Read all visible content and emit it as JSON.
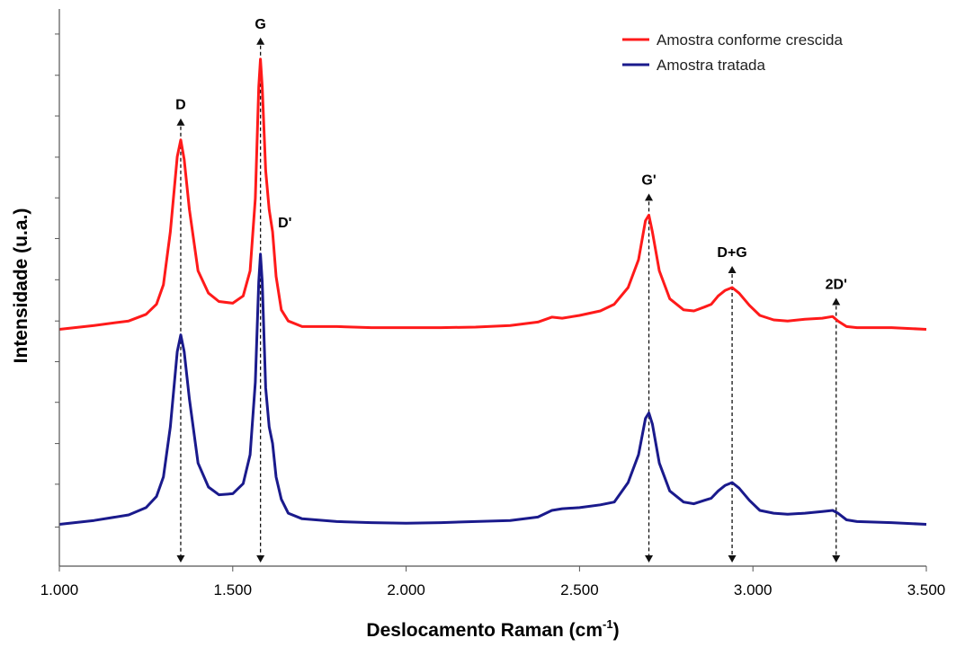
{
  "chart_data": {
    "type": "line",
    "xlabel": "Deslocamento Raman (cm",
    "xlabel_sup": "-1",
    "xlabel_end": ")",
    "ylabel": "Intensidade (u.a.)",
    "xlim": [
      1000,
      3500
    ],
    "ylim": [
      0,
      1
    ],
    "x_ticks": [
      1000,
      1500,
      2000,
      2500,
      3000,
      3500
    ],
    "x_tick_labels": [
      "1.000",
      "1.500",
      "2.000",
      "2.500",
      "3.000",
      "3.500"
    ],
    "y_minor_ticks": [
      0.07,
      0.147,
      0.22,
      0.294,
      0.367,
      0.44,
      0.514,
      0.588,
      0.661,
      0.734,
      0.808,
      0.881,
      0.955
    ],
    "grid": false,
    "legend_position": "top-right",
    "series": [
      {
        "name": "Amostra conforme crescida",
        "color": "#ff1a1a",
        "x": [
          1000,
          1100,
          1200,
          1250,
          1280,
          1300,
          1320,
          1340,
          1350,
          1360,
          1375,
          1400,
          1430,
          1460,
          1500,
          1530,
          1550,
          1565,
          1575,
          1580,
          1585,
          1595,
          1605,
          1615,
          1625,
          1640,
          1660,
          1700,
          1800,
          1900,
          2000,
          2100,
          2200,
          2300,
          2380,
          2420,
          2450,
          2500,
          2560,
          2600,
          2640,
          2670,
          2690,
          2700,
          2710,
          2730,
          2760,
          2800,
          2830,
          2860,
          2880,
          2900,
          2920,
          2940,
          2960,
          2990,
          3020,
          3060,
          3100,
          3150,
          3200,
          3230,
          3245,
          3270,
          3300,
          3400,
          3500
        ],
        "y": [
          0.425,
          0.432,
          0.44,
          0.452,
          0.47,
          0.505,
          0.6,
          0.735,
          0.765,
          0.73,
          0.64,
          0.53,
          0.49,
          0.475,
          0.472,
          0.485,
          0.53,
          0.66,
          0.86,
          0.91,
          0.86,
          0.71,
          0.64,
          0.6,
          0.52,
          0.46,
          0.44,
          0.43,
          0.43,
          0.428,
          0.428,
          0.428,
          0.429,
          0.432,
          0.438,
          0.447,
          0.445,
          0.45,
          0.458,
          0.47,
          0.5,
          0.55,
          0.62,
          0.63,
          0.6,
          0.53,
          0.48,
          0.46,
          0.458,
          0.465,
          0.47,
          0.485,
          0.495,
          0.5,
          0.49,
          0.468,
          0.45,
          0.442,
          0.44,
          0.443,
          0.445,
          0.448,
          0.44,
          0.43,
          0.428,
          0.428,
          0.425
        ]
      },
      {
        "name": "Amostra tratada",
        "color": "#1a1a8c",
        "x": [
          1000,
          1100,
          1200,
          1250,
          1280,
          1300,
          1320,
          1340,
          1350,
          1360,
          1375,
          1400,
          1430,
          1460,
          1500,
          1530,
          1550,
          1565,
          1575,
          1580,
          1585,
          1595,
          1605,
          1615,
          1625,
          1640,
          1660,
          1700,
          1800,
          1900,
          2000,
          2100,
          2200,
          2300,
          2380,
          2420,
          2450,
          2500,
          2560,
          2600,
          2640,
          2670,
          2690,
          2700,
          2710,
          2730,
          2760,
          2800,
          2830,
          2860,
          2880,
          2900,
          2920,
          2940,
          2960,
          2990,
          3020,
          3060,
          3100,
          3150,
          3200,
          3230,
          3245,
          3270,
          3300,
          3400,
          3500
        ],
        "y": [
          0.075,
          0.082,
          0.092,
          0.105,
          0.125,
          0.16,
          0.25,
          0.385,
          0.415,
          0.385,
          0.3,
          0.185,
          0.142,
          0.128,
          0.13,
          0.148,
          0.2,
          0.33,
          0.51,
          0.56,
          0.51,
          0.32,
          0.25,
          0.22,
          0.16,
          0.12,
          0.095,
          0.085,
          0.08,
          0.078,
          0.077,
          0.078,
          0.08,
          0.082,
          0.088,
          0.1,
          0.103,
          0.105,
          0.11,
          0.115,
          0.15,
          0.2,
          0.265,
          0.275,
          0.255,
          0.185,
          0.135,
          0.115,
          0.112,
          0.118,
          0.122,
          0.135,
          0.145,
          0.15,
          0.14,
          0.118,
          0.1,
          0.095,
          0.093,
          0.095,
          0.098,
          0.1,
          0.095,
          0.083,
          0.08,
          0.078,
          0.075
        ]
      }
    ],
    "annotations": [
      {
        "label": "D",
        "x": 1350
      },
      {
        "label": "G",
        "x": 1580
      },
      {
        "label": "D'",
        "x": 1620,
        "no_line": true
      },
      {
        "label": "G'",
        "x": 2700
      },
      {
        "label": "D+G",
        "x": 2940
      },
      {
        "label": "2D'",
        "x": 3240
      }
    ]
  }
}
